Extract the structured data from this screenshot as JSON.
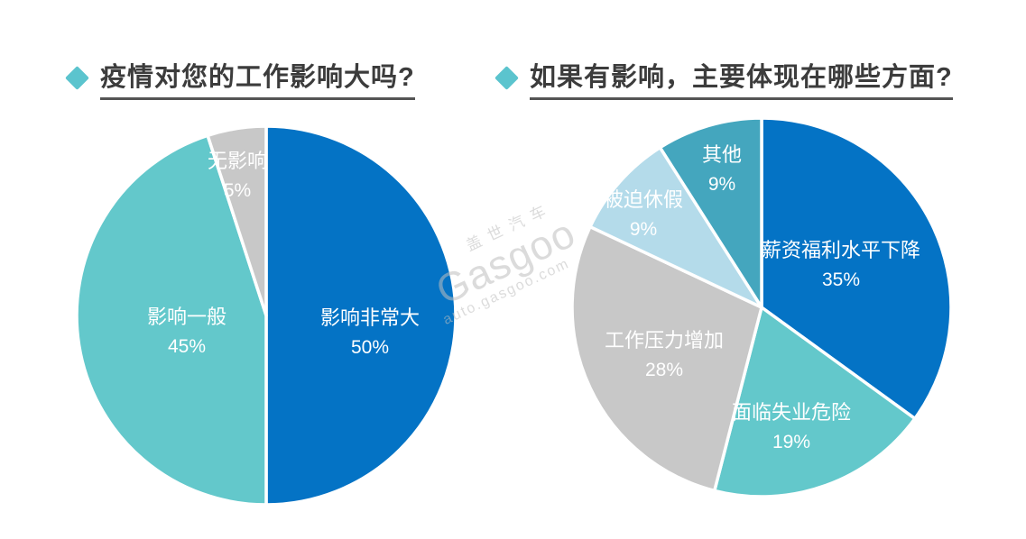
{
  "page": {
    "background": "#ffffff",
    "accent_teal": "#5BC4CE",
    "title_color": "#3c3c3c"
  },
  "titles": [
    {
      "text": "疫情对您的工作影响大吗?"
    },
    {
      "text": "如果有影响，主要体现在哪些方面?"
    }
  ],
  "watermark": {
    "brand_cn": "盖世汽车",
    "brand_en": "Gasgoo",
    "domain": "auto.gasgoo.com"
  },
  "chart_data": [
    {
      "type": "pie",
      "title": "疫情对您的工作影响大吗?",
      "categories": [
        "影响非常大",
        "影响一般",
        "无影响"
      ],
      "values": [
        50,
        45,
        5
      ],
      "unit": "%",
      "colors": [
        "#0473C5",
        "#63C8CB",
        "#C8C8C8"
      ],
      "label_color": "#ffffff",
      "start_angle_deg": 0,
      "direction": "clockwise",
      "legend": "none",
      "center": [
        220,
        220
      ],
      "radius": 210,
      "stroke": "#ffffff",
      "label_pos": [
        [
          335,
          222
        ],
        [
          132,
          221
        ],
        [
          188,
          48
        ]
      ]
    },
    {
      "type": "pie",
      "title": "如果有影响，主要体现在哪些方面?",
      "categories": [
        "薪资福利水平下降",
        "面临失业危险",
        "工作压力增加",
        "被迫休假",
        "其他"
      ],
      "values": [
        35,
        19,
        28,
        9,
        9
      ],
      "unit": "%",
      "colors": [
        "#0473C5",
        "#63C8CB",
        "#C8C8C8",
        "#B4DBEA",
        "#44A6BE"
      ],
      "label_color": "#ffffff",
      "start_angle_deg": 0,
      "direction": "clockwise",
      "legend": "none",
      "center": [
        220,
        220
      ],
      "radius": 210,
      "stroke": "#ffffff",
      "label_pos": [
        [
          308,
          156
        ],
        [
          253,
          336
        ],
        [
          112,
          256
        ],
        [
          89,
          100
        ],
        [
          176,
          50
        ]
      ]
    }
  ]
}
